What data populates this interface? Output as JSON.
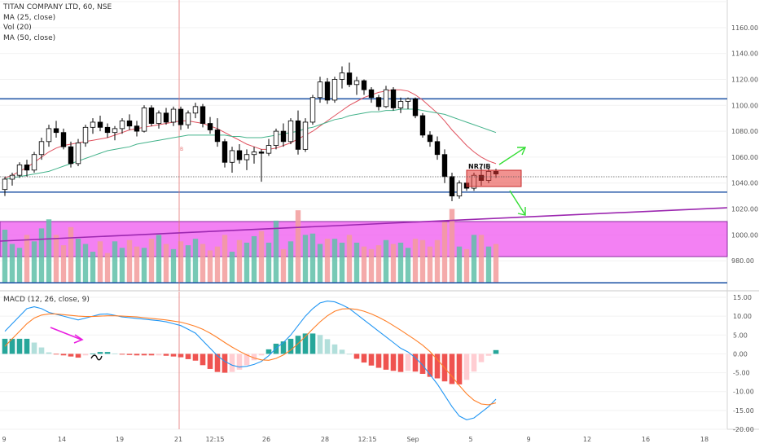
{
  "header": {
    "symbol_title": "TITAN COMPANY LTD, 60, NSE",
    "indicators": [
      "MA (25, close)",
      "Vol (20)",
      "MA (50, close)"
    ],
    "macd_title": "MACD (12, 26, close, 9)"
  },
  "colors": {
    "bull": "#ffffff",
    "bear": "#000000",
    "ma_fast": "#e0525f",
    "ma_slow": "#44b38b",
    "vol_up": "#5fbfa8",
    "vol_down": "#f29b9b",
    "support_line": "#2a5caa",
    "trendline": "#9c27b0",
    "zone": "#f062f0",
    "nr7_box": "#e53935",
    "arrow": "#33dd33",
    "macd_line": "#2196f3",
    "signal_line": "#ff7f27",
    "hist_up_strong": "#26a69a",
    "hist_up_weak": "#b2dfdb",
    "hist_down_strong": "#ef5350",
    "hist_down_weak": "#ffcdd2",
    "pink_arrow": "#e91ee0"
  },
  "chart_data": [
    {
      "type": "candlestick",
      "title": "TITAN COMPANY LTD, 60, NSE",
      "ylim": [
        960,
        1180
      ],
      "y_ticks": [
        980,
        1000,
        1020,
        1040,
        1060,
        1080,
        1100,
        1120,
        1140,
        1160,
        1180
      ],
      "x_tick_labels": [
        "9",
        "14",
        "19",
        "21",
        "12:15",
        "26",
        "28",
        "12:15",
        "Sep",
        "5",
        "9",
        "12",
        "16",
        "18"
      ],
      "annotations": [
        "NR7IB"
      ],
      "horizontal_levels": [
        1105,
        1033,
        963
      ],
      "candles": [
        [
          1035,
          1045,
          1030,
          1043
        ],
        [
          1043,
          1048,
          1038,
          1046
        ],
        [
          1046,
          1056,
          1044,
          1054
        ],
        [
          1054,
          1058,
          1045,
          1050
        ],
        [
          1050,
          1064,
          1048,
          1062
        ],
        [
          1062,
          1075,
          1058,
          1072
        ],
        [
          1072,
          1085,
          1068,
          1082
        ],
        [
          1082,
          1088,
          1075,
          1079
        ],
        [
          1079,
          1082,
          1066,
          1068
        ],
        [
          1068,
          1072,
          1052,
          1055
        ],
        [
          1055,
          1074,
          1053,
          1071
        ],
        [
          1071,
          1085,
          1068,
          1083
        ],
        [
          1083,
          1090,
          1078,
          1087
        ],
        [
          1087,
          1092,
          1080,
          1083
        ],
        [
          1083,
          1086,
          1075,
          1079
        ],
        [
          1079,
          1084,
          1073,
          1082
        ],
        [
          1082,
          1090,
          1078,
          1088
        ],
        [
          1088,
          1093,
          1081,
          1084
        ],
        [
          1084,
          1088,
          1076,
          1080
        ],
        [
          1080,
          1100,
          1079,
          1098
        ],
        [
          1098,
          1100,
          1084,
          1086
        ],
        [
          1086,
          1096,
          1082,
          1094
        ],
        [
          1094,
          1098,
          1085,
          1087
        ],
        [
          1087,
          1099,
          1084,
          1097
        ],
        [
          1097,
          1099,
          1081,
          1085
        ],
        [
          1085,
          1096,
          1082,
          1094
        ],
        [
          1094,
          1102,
          1090,
          1099
        ],
        [
          1099,
          1101,
          1083,
          1086
        ],
        [
          1086,
          1091,
          1078,
          1081
        ],
        [
          1081,
          1090,
          1068,
          1072
        ],
        [
          1072,
          1074,
          1052,
          1056
        ],
        [
          1056,
          1068,
          1048,
          1065
        ],
        [
          1065,
          1070,
          1055,
          1058
        ],
        [
          1058,
          1066,
          1050,
          1062
        ],
        [
          1062,
          1068,
          1055,
          1064
        ],
        [
          1064,
          1066,
          1041,
          1063
        ],
        [
          1063,
          1074,
          1061,
          1069
        ],
        [
          1069,
          1082,
          1066,
          1080
        ],
        [
          1080,
          1086,
          1068,
          1072
        ],
        [
          1072,
          1090,
          1070,
          1088
        ],
        [
          1088,
          1096,
          1062,
          1066
        ],
        [
          1066,
          1090,
          1064,
          1087
        ],
        [
          1087,
          1108,
          1085,
          1106
        ],
        [
          1106,
          1122,
          1102,
          1118
        ],
        [
          1118,
          1121,
          1101,
          1104
        ],
        [
          1104,
          1122,
          1102,
          1120
        ],
        [
          1120,
          1130,
          1113,
          1125
        ],
        [
          1125,
          1133,
          1114,
          1116
        ],
        [
          1116,
          1122,
          1108,
          1119
        ],
        [
          1119,
          1120,
          1108,
          1112
        ],
        [
          1112,
          1114,
          1102,
          1106
        ],
        [
          1106,
          1108,
          1096,
          1099
        ],
        [
          1099,
          1115,
          1098,
          1112
        ],
        [
          1112,
          1114,
          1096,
          1098
        ],
        [
          1098,
          1106,
          1094,
          1103
        ],
        [
          1103,
          1106,
          1097,
          1105
        ],
        [
          1105,
          1106,
          1090,
          1092
        ],
        [
          1092,
          1094,
          1075,
          1077
        ],
        [
          1077,
          1080,
          1068,
          1072
        ],
        [
          1072,
          1076,
          1058,
          1062
        ],
        [
          1062,
          1066,
          1040,
          1045
        ],
        [
          1045,
          1048,
          1026,
          1030
        ],
        [
          1030,
          1042,
          1028,
          1040
        ],
        [
          1040,
          1044,
          1034,
          1036
        ],
        [
          1036,
          1048,
          1034,
          1046
        ],
        [
          1046,
          1052,
          1038,
          1042
        ],
        [
          1042,
          1052,
          1040,
          1049
        ],
        [
          1049,
          1051,
          1044,
          1047
        ]
      ],
      "ma_fast": [
        1044,
        1046,
        1049,
        1052,
        1056,
        1060,
        1064,
        1067,
        1069,
        1070,
        1071,
        1072,
        1073,
        1074,
        1075,
        1077,
        1079,
        1081,
        1082,
        1083,
        1084,
        1085,
        1086,
        1087,
        1088,
        1088,
        1087,
        1086,
        1084,
        1082,
        1079,
        1076,
        1073,
        1070,
        1068,
        1066,
        1066,
        1067,
        1069,
        1071,
        1074,
        1077,
        1080,
        1084,
        1088,
        1092,
        1096,
        1100,
        1103,
        1106,
        1108,
        1110,
        1111,
        1112,
        1112,
        1111,
        1108,
        1104,
        1099,
        1094,
        1088,
        1081,
        1075,
        1069,
        1064,
        1060,
        1057,
        1055
      ],
      "ma_slow": [
        1043,
        1044,
        1045,
        1046,
        1047,
        1048,
        1049,
        1051,
        1053,
        1055,
        1057,
        1059,
        1061,
        1063,
        1065,
        1066,
        1067,
        1068,
        1070,
        1071,
        1072,
        1073,
        1074,
        1075,
        1076,
        1077,
        1077,
        1077,
        1077,
        1077,
        1077,
        1076,
        1076,
        1075,
        1075,
        1075,
        1076,
        1077,
        1078,
        1079,
        1080,
        1082,
        1083,
        1085,
        1087,
        1089,
        1090,
        1092,
        1093,
        1094,
        1095,
        1095,
        1096,
        1096,
        1097,
        1097,
        1097,
        1096,
        1095,
        1094,
        1093,
        1091,
        1089,
        1087,
        1085,
        1083,
        1081,
        1079
      ],
      "volume": [
        1004,
        993,
        990,
        1000,
        995,
        1005,
        1012,
        1000,
        992,
        1006,
        997,
        993,
        987,
        995,
        986,
        995,
        990,
        996,
        991,
        990,
        997,
        1000,
        993,
        989,
        995,
        992,
        997,
        993,
        988,
        991,
        1000,
        987,
        996,
        994,
        999,
        1003,
        994,
        1011,
        989,
        995,
        1019,
        1000,
        1001,
        993,
        997,
        997,
        994,
        1000,
        994,
        991,
        989,
        992,
        996,
        993,
        994,
        990,
        997,
        996,
        991,
        996,
        1010,
        1020,
        991,
        989,
        1000,
        1000,
        991,
        993
      ]
    },
    {
      "type": "macd",
      "title": "MACD (12, 26, close, 9)",
      "ylim": [
        -20,
        15
      ],
      "y_ticks": [
        15,
        10,
        5,
        0,
        -5,
        -10,
        -15,
        -20
      ],
      "macd": [
        6,
        8,
        10,
        12,
        12.5,
        12,
        11,
        10.5,
        10,
        9.5,
        9,
        9.5,
        10,
        10.5,
        10.6,
        10.2,
        9.8,
        9.6,
        9.4,
        9.2,
        9.0,
        8.8,
        8.5,
        8.0,
        7.5,
        6.5,
        5.5,
        3.5,
        1.5,
        -0.5,
        -2.0,
        -3.0,
        -3.5,
        -3.3,
        -2.8,
        -2.0,
        -0.5,
        1.5,
        3.0,
        5.0,
        7.5,
        10.0,
        12.0,
        13.5,
        14.0,
        13.8,
        13.0,
        12.0,
        10.5,
        9.0,
        7.5,
        6.0,
        4.5,
        3.0,
        1.5,
        0.5,
        -1.0,
        -3.0,
        -5.5,
        -8.0,
        -11.0,
        -14.0,
        -16.5,
        -17.5,
        -17.0,
        -15.5,
        -14.0,
        -12.0
      ],
      "signal": [
        2,
        4,
        6,
        8,
        9.5,
        10.3,
        10.6,
        10.6,
        10.4,
        10.2,
        10.0,
        9.9,
        9.9,
        10.0,
        10.1,
        10.1,
        10.0,
        9.9,
        9.8,
        9.6,
        9.4,
        9.2,
        9.0,
        8.7,
        8.4,
        7.9,
        7.3,
        6.5,
        5.5,
        4.3,
        3.0,
        1.8,
        0.7,
        -0.3,
        -1.1,
        -1.6,
        -1.7,
        -1.2,
        -0.3,
        1.0,
        2.7,
        4.6,
        6.6,
        8.5,
        10.1,
        11.3,
        11.9,
        12.0,
        11.8,
        11.3,
        10.6,
        9.7,
        8.7,
        7.5,
        6.3,
        5.0,
        3.7,
        2.3,
        0.6,
        -1.5,
        -3.7,
        -6.0,
        -8.4,
        -10.6,
        -12.3,
        -13.3,
        -13.5,
        -13.0
      ]
    }
  ]
}
